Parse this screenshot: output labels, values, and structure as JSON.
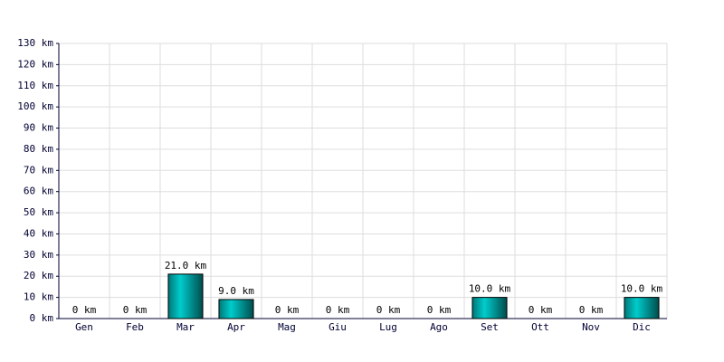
{
  "chart_data": {
    "type": "bar",
    "categories": [
      "Gen",
      "Feb",
      "Mar",
      "Apr",
      "Mag",
      "Giu",
      "Lug",
      "Ago",
      "Set",
      "Ott",
      "Nov",
      "Dic"
    ],
    "values": [
      0,
      0,
      21,
      9,
      0,
      0,
      0,
      0,
      10,
      0,
      0,
      10
    ],
    "value_labels": [
      "0 km",
      "0 km",
      "21.0 km",
      "9.0 km",
      "0 km",
      "0 km",
      "0 km",
      "0 km",
      "10.0 km",
      "0 km",
      "0 km",
      "10.0 km"
    ],
    "color": "#00cccc",
    "ylim": [
      0,
      130
    ],
    "yticks": [
      {
        "value": 0,
        "label": "0 km"
      },
      {
        "value": 10,
        "label": "10 km"
      },
      {
        "value": 20,
        "label": "20 km"
      },
      {
        "value": 30,
        "label": "30 km"
      },
      {
        "value": 40,
        "label": "40 km"
      },
      {
        "value": 50,
        "label": "50 km"
      },
      {
        "value": 60,
        "label": "60 km"
      },
      {
        "value": 70,
        "label": "70 km"
      },
      {
        "value": 80,
        "label": "80 km"
      },
      {
        "value": 90,
        "label": "90 km"
      },
      {
        "value": 100,
        "label": "100 km"
      },
      {
        "value": 110,
        "label": "110 km"
      },
      {
        "value": 120,
        "label": "120 km"
      },
      {
        "value": 130,
        "label": "130 km"
      }
    ],
    "grid": true
  }
}
